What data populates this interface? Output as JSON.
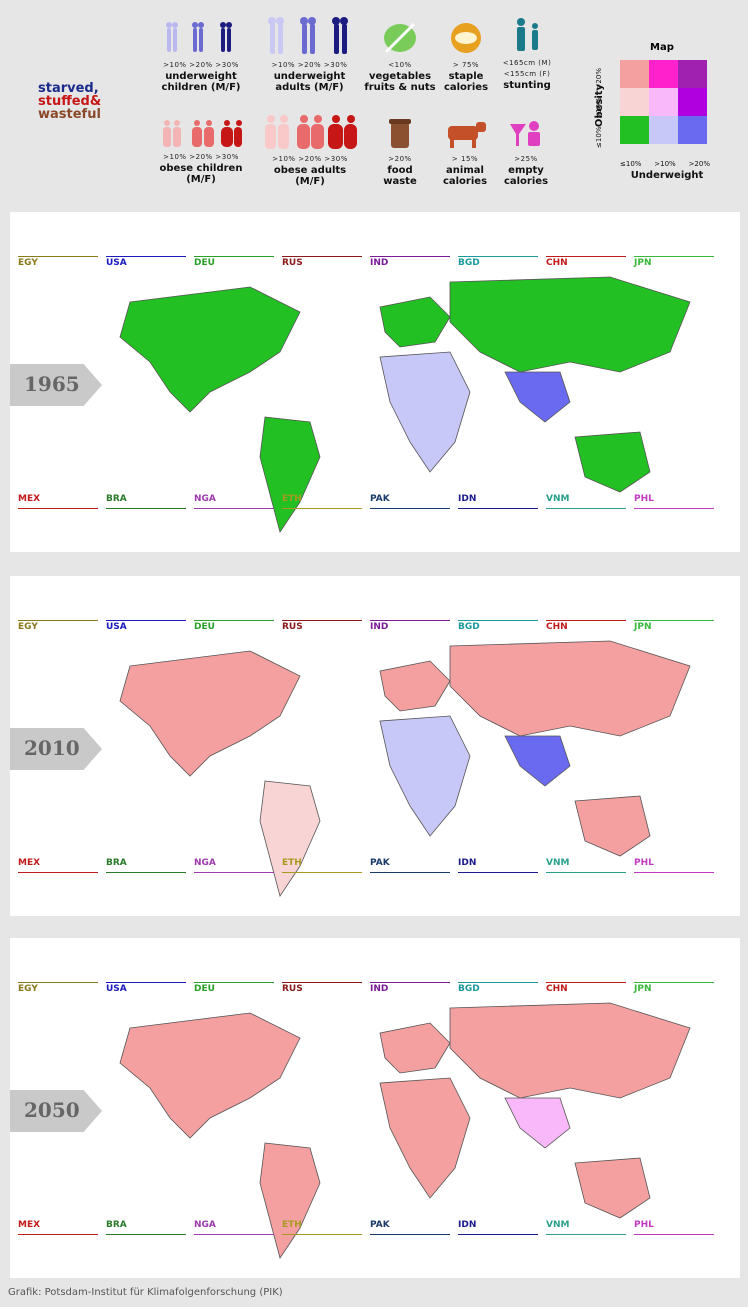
{
  "logo": {
    "line1": "starved,",
    "line2": "stuffed&",
    "line3": "wasteful"
  },
  "legend": {
    "underweight_children": {
      "pct": ">10% >20% >30%",
      "label": "underweight children (M/F)"
    },
    "underweight_adults": {
      "pct": ">10% >20% >30%",
      "label": "underweight adults (M/F)"
    },
    "vegetables": {
      "pct": "<10%",
      "label": "vegetables fruits & nuts"
    },
    "staple": {
      "pct": "> 75%",
      "label": "staple calories"
    },
    "stunting": {
      "pct": "<165cm (M) <155cm (F)",
      "label": "stunting"
    },
    "obese_children": {
      "pct": ">10% >20% >30%",
      "label": "obese children (M/F)"
    },
    "obese_adults": {
      "pct": ">10% >20% >30%",
      "label": "obese adults (M/F)"
    },
    "food_waste": {
      "pct": ">20%",
      "label": "food waste"
    },
    "animal": {
      "pct": "> 15%",
      "label": "animal calories"
    },
    "empty": {
      "pct": ">25%",
      "label": "empty calories"
    }
  },
  "matrix": {
    "title": "Map",
    "y_label": "Obesity",
    "x_label": "Underweight",
    "y_ticks": [
      "≤10%",
      ">10%",
      ">20%"
    ],
    "x_ticks": [
      "≤10%",
      ">10%",
      ">20%"
    ],
    "colors": [
      "#f4a0a0",
      "#ff22cc",
      "#a020b0",
      "#f9d4d4",
      "#f9b8f9",
      "#b000e0",
      "#22c022",
      "#c8c8f8",
      "#6a6af0"
    ]
  },
  "top_codes": [
    "EGY",
    "USA",
    "DEU",
    "RUS",
    "IND",
    "BGD",
    "CHN",
    "JPN"
  ],
  "bottom_codes": [
    "MEX",
    "BRA",
    "NGA",
    "ETH",
    "PAK",
    "IDN",
    "VNM",
    "PHL"
  ],
  "code_colors": [
    "#8a7a1a",
    "#1a1ac0",
    "#2aa02a",
    "#8a1a1a",
    "#7a1a9a",
    "#1a9a9a",
    "#c01a1a",
    "#3ab83a",
    "#c01a1a",
    "#2a7a2a",
    "#a03ab0",
    "#a89a20",
    "#1a3a6a",
    "#1a1a8a",
    "#2aa08a",
    "#c03ac0"
  ],
  "panels": [
    {
      "year": "1965",
      "map_colors": {
        "north_america": "#22c022",
        "south_america": "#22c022",
        "europe": "#22c022",
        "africa": "#c8c8f8",
        "asia": "#22c022",
        "south_asia": "#6a6af0",
        "australia": "#22c022"
      }
    },
    {
      "year": "2010",
      "map_colors": {
        "north_america": "#f4a0a0",
        "south_america": "#f9d4d4",
        "europe": "#f4a0a0",
        "africa": "#c8c8f8",
        "asia": "#f4a0a0",
        "south_asia": "#6a6af0",
        "australia": "#f4a0a0"
      }
    },
    {
      "year": "2050",
      "map_colors": {
        "north_america": "#f4a0a0",
        "south_america": "#f4a0a0",
        "europe": "#f4a0a0",
        "africa": "#f4a0a0",
        "asia": "#f4a0a0",
        "south_asia": "#f9b8f9",
        "australia": "#f4a0a0"
      }
    }
  ],
  "credit": "Grafik: Potsdam-Institut für Klimafolgenforschung (PIK)"
}
